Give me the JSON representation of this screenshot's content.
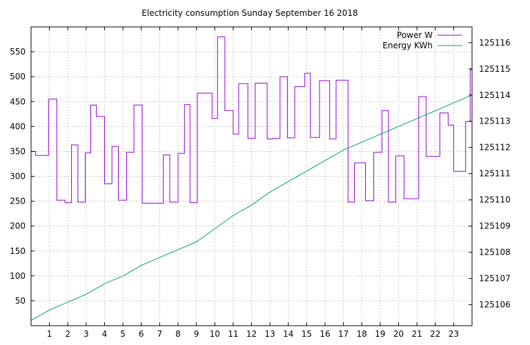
{
  "chart_data": {
    "type": "line",
    "title": "Electricity consumption Sunday September 16 2018",
    "xlabel": "",
    "ylabel": "",
    "y2label": "",
    "xlim": [
      0,
      24
    ],
    "ylim": [
      0,
      600
    ],
    "y2lim": [
      125105.2,
      125116.6
    ],
    "grid": true,
    "legend_position": "top-right",
    "x_ticks": [
      1,
      2,
      3,
      4,
      5,
      6,
      7,
      8,
      9,
      10,
      11,
      12,
      13,
      14,
      15,
      16,
      17,
      18,
      19,
      20,
      21,
      22,
      23
    ],
    "y_ticks": [
      50,
      100,
      150,
      200,
      250,
      300,
      350,
      400,
      450,
      500,
      550
    ],
    "y2_ticks": [
      125106,
      125107,
      125108,
      125109,
      125110,
      125111,
      125112,
      125113,
      125114,
      125115,
      125116
    ],
    "series": [
      {
        "name": "Power W",
        "axis": "y",
        "color": "#9400d3",
        "step": true,
        "x": [
          0,
          0.25,
          0.95,
          1.4,
          1.85,
          2.2,
          2.55,
          2.95,
          3.25,
          3.55,
          4.0,
          4.4,
          4.75,
          5.2,
          5.6,
          6.05,
          6.55,
          7.2,
          7.55,
          8.0,
          8.35,
          8.65,
          9.0,
          9.05,
          9.85,
          10.15,
          10.55,
          11.0,
          11.3,
          11.8,
          12.2,
          12.85,
          13.15,
          13.55,
          13.95,
          14.35,
          14.9,
          15.2,
          15.7,
          16.25,
          16.6,
          17.25,
          17.6,
          18.2,
          18.65,
          19.1,
          19.45,
          19.85,
          20.3,
          20.6,
          21.1,
          21.5,
          21.7,
          21.9,
          22.25,
          22.7,
          23.0,
          23.65,
          23.9
        ],
        "values": [
          350,
          342,
          455,
          252,
          247,
          363,
          248,
          347,
          443,
          420,
          285,
          360,
          252,
          348,
          443,
          246,
          246,
          343,
          248,
          346,
          444,
          247,
          247,
          467,
          416,
          580,
          432,
          385,
          486,
          376,
          487,
          375,
          376,
          500,
          377,
          480,
          507,
          378,
          492,
          375,
          493,
          248,
          327,
          251,
          348,
          432,
          248,
          341,
          255,
          255,
          460,
          340,
          340,
          340,
          427,
          403,
          310,
          410,
          514
        ]
      },
      {
        "name": "Energy KWh",
        "axis": "y2",
        "color": "#009e73",
        "step": false,
        "x": [
          0,
          1,
          2,
          3,
          4,
          5,
          6,
          7,
          8,
          9,
          10,
          11,
          12,
          13,
          14,
          15,
          16,
          17,
          18,
          19,
          20,
          21,
          22,
          23,
          24
        ],
        "values": [
          125105.4,
          125105.8,
          125106.1,
          125106.4,
          125106.8,
          125107.1,
          125107.5,
          125107.8,
          125108.1,
          125108.4,
          125108.9,
          125109.4,
          125109.8,
          125110.3,
          125110.7,
          125111.1,
          125111.5,
          125111.9,
          125112.2,
          125112.5,
          125112.8,
          125113.1,
          125113.4,
          125113.7,
          125114.0
        ]
      }
    ]
  }
}
